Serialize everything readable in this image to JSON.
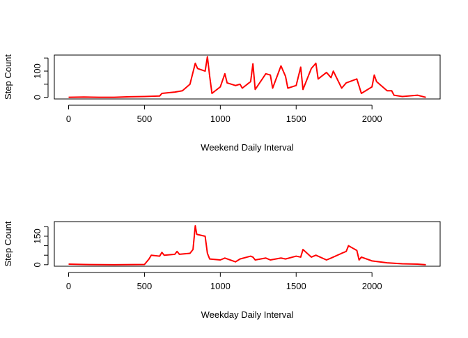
{
  "chart_data": [
    {
      "type": "line",
      "xlabel": "Weekend Daily Interval",
      "ylabel": "Step Count",
      "xlim": [
        -94.2,
        2449.2
      ],
      "ylim": [
        -6.2,
        161.2
      ],
      "xticks": [
        0,
        500,
        1000,
        1500,
        2000
      ],
      "yticks": [
        0,
        {
          "value": 50,
          "label": null
        },
        100,
        {
          "value": 150,
          "label": null
        }
      ],
      "series": [
        {
          "color": "#ff0000",
          "x": [
            0,
            100,
            200,
            300,
            400,
            500,
            600,
            615,
            700,
            750,
            800,
            835,
            850,
            900,
            915,
            930,
            945,
            1000,
            1030,
            1045,
            1100,
            1130,
            1145,
            1200,
            1215,
            1230,
            1300,
            1330,
            1345,
            1400,
            1430,
            1445,
            1500,
            1530,
            1545,
            1600,
            1630,
            1645,
            1700,
            1730,
            1745,
            1800,
            1830,
            1900,
            1930,
            2000,
            2015,
            2030,
            2100,
            2130,
            2145,
            2200,
            2300,
            2355
          ],
          "values": [
            0,
            1,
            0,
            0,
            2,
            3,
            5,
            15,
            20,
            25,
            50,
            130,
            110,
            100,
            155,
            80,
            15,
            40,
            90,
            55,
            45,
            50,
            35,
            60,
            128,
            30,
            90,
            85,
            35,
            120,
            80,
            35,
            45,
            115,
            30,
            110,
            130,
            70,
            95,
            75,
            100,
            35,
            55,
            70,
            15,
            40,
            85,
            60,
            25,
            25,
            8,
            3,
            8,
            0
          ]
        }
      ]
    },
    {
      "type": "line",
      "xlabel": "Weekday Daily Interval",
      "ylabel": "Step Count",
      "xlim": [
        -94.2,
        2449.2
      ],
      "ylim": [
        -8,
        227
      ],
      "xticks": [
        0,
        500,
        1000,
        1500,
        2000
      ],
      "yticks": [
        0,
        {
          "value": 50,
          "label": null
        },
        {
          "value": 100,
          "label": null
        },
        150,
        {
          "value": 200,
          "label": null
        }
      ],
      "series": [
        {
          "color": "#ff0000",
          "x": [
            0,
            100,
            300,
            500,
            530,
            545,
            600,
            615,
            630,
            700,
            715,
            730,
            800,
            820,
            835,
            845,
            900,
            915,
            930,
            1000,
            1030,
            1100,
            1130,
            1200,
            1215,
            1230,
            1300,
            1330,
            1400,
            1430,
            1500,
            1530,
            1545,
            1600,
            1630,
            1700,
            1730,
            1800,
            1830,
            1845,
            1900,
            1915,
            1930,
            2000,
            2100,
            2200,
            2300,
            2355
          ],
          "values": [
            3,
            1,
            0,
            1,
            30,
            50,
            45,
            65,
            50,
            55,
            70,
            55,
            60,
            80,
            205,
            160,
            150,
            60,
            30,
            25,
            35,
            15,
            30,
            45,
            40,
            25,
            35,
            25,
            35,
            30,
            45,
            40,
            80,
            40,
            50,
            25,
            35,
            60,
            70,
            100,
            75,
            25,
            40,
            20,
            10,
            5,
            3,
            0
          ]
        }
      ]
    }
  ]
}
